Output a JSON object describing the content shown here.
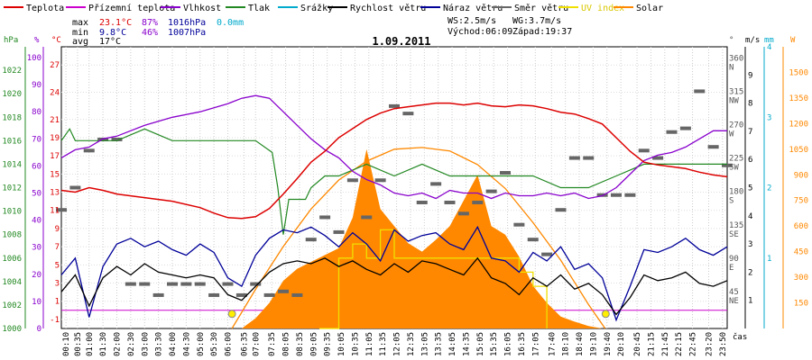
{
  "chart_data": {
    "type": "line",
    "title": "1.09.2011",
    "legend": [
      {
        "label": "Teplota",
        "color": "#dd0000"
      },
      {
        "label": "Přízemní teplota",
        "color": "#cc00cc"
      },
      {
        "label": "Vlhkost",
        "color": "#8800cc"
      },
      {
        "label": "Tlak",
        "color": "#228822"
      },
      {
        "label": "Srážky",
        "color": "#00aacc"
      },
      {
        "label": "Rychlost větru",
        "color": "#000000"
      },
      {
        "label": "Náraz větru",
        "color": "#000099"
      },
      {
        "label": "Směr větru",
        "color": "#666666"
      },
      {
        "label": "UV index",
        "color": "#f0e000"
      },
      {
        "label": "Solar",
        "color": "#ff8800"
      }
    ],
    "stats": {
      "max_label": "max",
      "max_temp": "23.1°C",
      "max_hum": "87%",
      "max_press": "1016hPa",
      "max_rain": "0.0mm",
      "min_label": "min",
      "min_temp": "9.8°C",
      "min_hum": "46%",
      "min_press": "1007hPa",
      "avg_label": "avg",
      "avg_temp": "17°C",
      "ws": "WS:2.5m/s",
      "wg": "WG:3.7m/s",
      "sunrise": "Východ:06:09",
      "sunset": "Západ:19:37"
    },
    "axis_units": {
      "hpa": "hPa",
      "pct": "%",
      "temp": "°C",
      "dir": "°",
      "ms": "m/s",
      "mm": "mm",
      "w": "W",
      "time": "čas"
    },
    "axes": {
      "hpa": {
        "ticks": [
          "1022",
          "1020",
          "1018",
          "1016",
          "1014",
          "1012",
          "1010",
          "1008",
          "1006",
          "1004",
          "1002",
          "1000"
        ],
        "color": "#228822"
      },
      "pct": {
        "ticks": [
          "100",
          "90",
          "80",
          "70",
          "60",
          "50",
          "40",
          "30",
          "20",
          "10",
          "0"
        ],
        "color": "#8800cc"
      },
      "temp": {
        "ticks": [
          "27",
          "24",
          "21",
          "19",
          "17",
          "15",
          "13",
          "11",
          "9",
          "7",
          "5",
          "3",
          "1",
          "-1"
        ],
        "color": "#dd0000"
      },
      "dir": {
        "ticks": [
          "360",
          "315",
          "270",
          "225",
          "180",
          "135",
          "90",
          "45"
        ],
        "labels": [
          "N",
          "NW",
          "W",
          "SW",
          "S",
          "SE",
          "E",
          "NE"
        ],
        "color": "#555555"
      },
      "ms": {
        "ticks": [
          "9",
          "8",
          "7",
          "6",
          "5",
          "4",
          "3",
          "2",
          "1"
        ],
        "color": "#000000"
      },
      "mm": {
        "ticks": [
          "1",
          "2",
          "3",
          "4"
        ],
        "color": "#00aacc"
      },
      "w": {
        "ticks": [
          "1500",
          "1350",
          "1200",
          "1050",
          "900",
          "750",
          "600",
          "450",
          "300",
          "150"
        ],
        "color": "#ff8800"
      }
    },
    "x_ticks": [
      "00:10",
      "00:35",
      "01:00",
      "01:30",
      "02:00",
      "02:30",
      "03:00",
      "03:30",
      "04:00",
      "04:30",
      "05:00",
      "05:30",
      "06:00",
      "06:35",
      "07:00",
      "07:35",
      "08:05",
      "08:35",
      "09:05",
      "09:35",
      "10:05",
      "10:35",
      "11:05",
      "11:35",
      "12:05",
      "12:35",
      "13:05",
      "13:35",
      "14:05",
      "14:35",
      "15:05",
      "15:35",
      "16:05",
      "16:35",
      "17:05",
      "17:40",
      "18:10",
      "18:40",
      "19:10",
      "19:40",
      "20:10",
      "20:45",
      "21:15",
      "21:45",
      "22:15",
      "22:45",
      "23:20",
      "23:50"
    ],
    "x_range_hours": [
      0,
      24
    ],
    "series": {
      "temperature_c": {
        "x": [
          0,
          0.5,
          1,
          1.5,
          2,
          3,
          4,
          5,
          5.5,
          6,
          6.5,
          7,
          7.5,
          8,
          8.5,
          9,
          9.5,
          10,
          10.5,
          11,
          11.5,
          12,
          12.5,
          13,
          13.5,
          14,
          14.5,
          15,
          15.5,
          16,
          16.5,
          17,
          17.5,
          18,
          18.5,
          19,
          19.5,
          20,
          20.5,
          21,
          21.5,
          22,
          22.5,
          23,
          23.5,
          24
        ],
        "y": [
          13.2,
          13,
          13.5,
          13.2,
          12.8,
          12.4,
          12,
          11.3,
          10.7,
          10.2,
          10.1,
          10.3,
          11.2,
          12.8,
          14.5,
          16.3,
          17.5,
          19,
          20,
          21,
          21.7,
          22.2,
          22.4,
          22.6,
          22.8,
          22.8,
          22.6,
          22.8,
          22.5,
          22.4,
          22.6,
          22.5,
          22.2,
          21.8,
          21.6,
          21.1,
          20.5,
          19,
          17.5,
          16.3,
          16,
          15.8,
          15.6,
          15.2,
          14.9,
          14.7
        ]
      },
      "humidity_pct": {
        "x": [
          0,
          0.5,
          1,
          1.5,
          2,
          3,
          4,
          5,
          6,
          6.5,
          7,
          7.5,
          8,
          8.5,
          9,
          9.5,
          10,
          10.5,
          11,
          11.5,
          12,
          12.5,
          13,
          13.5,
          14,
          14.5,
          15,
          15.5,
          16,
          16.5,
          17,
          17.5,
          18,
          18.5,
          19,
          19.5,
          20,
          20.5,
          21,
          21.5,
          22,
          22.5,
          23,
          23.5,
          24
        ],
        "y": [
          63,
          66,
          67,
          70,
          71,
          75,
          78,
          80,
          83,
          85,
          86,
          85,
          80,
          75,
          70,
          66,
          63,
          58,
          55,
          53,
          50,
          49,
          50,
          48,
          51,
          50,
          50,
          48,
          50,
          49,
          49,
          50,
          49,
          50,
          48,
          49,
          52,
          57,
          62,
          64,
          65,
          67,
          70,
          73,
          73
        ]
      },
      "pressure_hpa": {
        "x": [
          0,
          0.3,
          0.5,
          1,
          2,
          3,
          4,
          5,
          6,
          7,
          7.6,
          7.8,
          8,
          8.2,
          8.5,
          8.8,
          9,
          9.5,
          10,
          11,
          12,
          13,
          14,
          15,
          16,
          17,
          18,
          19,
          20,
          21,
          22,
          23,
          24
        ],
        "y": [
          1016,
          1017,
          1016,
          1016,
          1016,
          1017,
          1016,
          1016,
          1016,
          1016,
          1015,
          1012,
          1008,
          1011,
          1011,
          1011,
          1012,
          1013,
          1013,
          1014,
          1013,
          1014,
          1013,
          1013,
          1013,
          1013,
          1012,
          1012,
          1013,
          1014,
          1014,
          1014,
          1014
        ]
      },
      "wind_speed_ms": {
        "x": [
          0,
          0.5,
          1,
          1.5,
          2,
          2.5,
          3,
          3.5,
          4,
          4.5,
          5,
          5.5,
          6,
          6.5,
          7,
          7.5,
          8,
          8.5,
          9,
          9.5,
          10,
          10.5,
          11,
          11.5,
          12,
          12.5,
          13,
          13.5,
          14,
          14.5,
          15,
          15.5,
          16,
          16.5,
          17,
          17.5,
          18,
          18.5,
          19,
          19.5,
          20,
          20.5,
          21,
          21.5,
          22,
          22.5,
          23,
          23.5,
          24
        ],
        "y": [
          1.3,
          1.9,
          0.8,
          1.8,
          2.2,
          1.9,
          2.3,
          2.0,
          1.9,
          1.8,
          1.9,
          1.8,
          1.2,
          1.0,
          1.5,
          2.0,
          2.3,
          2.4,
          2.3,
          2.5,
          2.2,
          2.4,
          2.1,
          1.9,
          2.3,
          2.0,
          2.4,
          2.3,
          2.1,
          1.9,
          2.5,
          1.8,
          1.6,
          1.2,
          1.8,
          1.5,
          1.9,
          1.4,
          1.6,
          1.2,
          0.5,
          1.1,
          1.9,
          1.7,
          1.8,
          2.0,
          1.6,
          1.5,
          1.7
        ]
      },
      "wind_gust_ms": {
        "x": [
          0,
          0.5,
          1,
          1.5,
          2,
          2.5,
          3,
          3.5,
          4,
          4.5,
          5,
          5.5,
          6,
          6.5,
          7,
          7.5,
          8,
          8.5,
          9,
          9.5,
          10,
          10.5,
          11,
          11.5,
          12,
          12.5,
          13,
          13.5,
          14,
          14.5,
          15,
          15.5,
          16,
          16.5,
          17,
          17.5,
          18,
          18.5,
          19,
          19.5,
          20,
          20.5,
          21,
          21.5,
          22,
          22.5,
          23,
          23.5,
          24
        ],
        "y": [
          1.9,
          2.5,
          0.4,
          2.2,
          3.0,
          3.2,
          2.9,
          3.1,
          2.8,
          2.6,
          3.0,
          2.7,
          1.8,
          1.5,
          2.6,
          3.2,
          3.5,
          3.4,
          3.6,
          3.3,
          2.9,
          3.4,
          3.0,
          2.4,
          3.5,
          3.1,
          3.3,
          3.4,
          3.0,
          2.8,
          3.6,
          2.5,
          2.4,
          2.0,
          2.7,
          2.4,
          2.9,
          2.1,
          2.3,
          1.8,
          0.3,
          1.5,
          2.8,
          2.7,
          2.9,
          3.2,
          2.8,
          2.6,
          2.9
        ]
      },
      "solar_w": {
        "x": [
          6.5,
          7,
          7.5,
          8,
          8.5,
          9,
          9.5,
          10,
          10.5,
          11,
          11.5,
          12,
          12.5,
          13,
          13.5,
          14,
          14.5,
          15,
          15.5,
          16,
          16.5,
          17,
          17.5,
          18,
          18.5,
          19,
          19.5
        ],
        "y": [
          0,
          60,
          150,
          280,
          350,
          390,
          430,
          470,
          650,
          1050,
          700,
          600,
          500,
          450,
          520,
          600,
          750,
          900,
          600,
          550,
          420,
          250,
          150,
          70,
          40,
          15,
          0
        ]
      },
      "solar_theoretical_w": {
        "x": [
          6.15,
          7,
          8,
          9,
          10,
          11,
          12,
          13,
          14,
          15,
          16,
          17,
          18,
          19,
          19.6
        ],
        "y": [
          0,
          230,
          480,
          700,
          870,
          980,
          1050,
          1060,
          1040,
          960,
          820,
          620,
          400,
          140,
          0
        ]
      },
      "uv_index": {
        "x": [
          9.3,
          10,
          10.5,
          11,
          11.5,
          12,
          13,
          14,
          15,
          16,
          16.5,
          17,
          17.5
        ],
        "y": [
          0,
          2.5,
          3,
          2.5,
          3.5,
          2.5,
          2.5,
          2.5,
          2.5,
          2.5,
          2,
          1.5,
          1.2
        ]
      },
      "wind_direction_deg": {
        "x": [
          0,
          0.5,
          1,
          1.5,
          2,
          2.5,
          3,
          3.5,
          4,
          4.5,
          5,
          5.5,
          6,
          6.5,
          7,
          7.5,
          8,
          8.5,
          9,
          9.5,
          10,
          10.5,
          11,
          11.5,
          12,
          12.5,
          13,
          13.5,
          14,
          14.5,
          15,
          15.5,
          16,
          16.5,
          17,
          17.5,
          18,
          18.5,
          19,
          19.5,
          20,
          20.5,
          21,
          21.5,
          22,
          22.5,
          23,
          23.5,
          24
        ],
        "y": [
          160,
          190,
          240,
          255,
          255,
          60,
          60,
          45,
          60,
          60,
          60,
          45,
          60,
          45,
          60,
          45,
          50,
          45,
          120,
          150,
          130,
          200,
          150,
          200,
          300,
          290,
          170,
          195,
          170,
          155,
          170,
          185,
          210,
          140,
          120,
          100,
          160,
          230,
          230,
          180,
          180,
          180,
          240,
          230,
          265,
          270,
          320,
          245,
          220
        ]
      }
    }
  }
}
